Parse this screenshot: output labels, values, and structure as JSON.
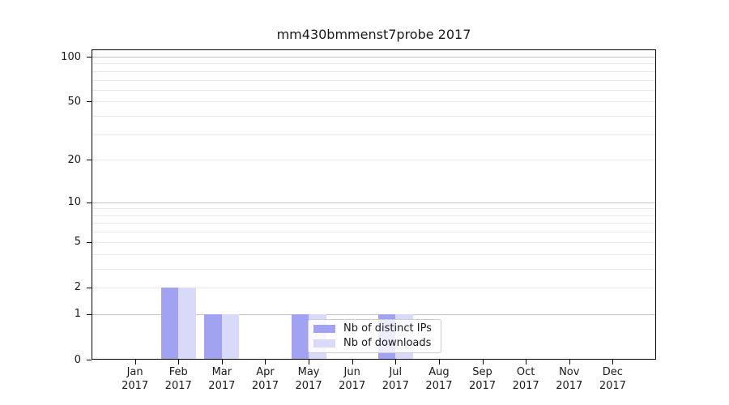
{
  "title": "mm430bmmenst7probe 2017",
  "chart_data": {
    "type": "bar",
    "title": "mm430bmmenst7probe 2017",
    "categories": [
      "Jan",
      "Feb",
      "Mar",
      "Apr",
      "May",
      "Jun",
      "Jul",
      "Aug",
      "Sep",
      "Oct",
      "Nov",
      "Dec"
    ],
    "year_label": "2017",
    "series": [
      {
        "name": "Nb of distinct IPs",
        "color": "#a2a2f2",
        "values": [
          0,
          2,
          1,
          0,
          1,
          0,
          1,
          0,
          0,
          0,
          0,
          0
        ]
      },
      {
        "name": "Nb of downloads",
        "color": "#d9d9fa",
        "values": [
          0,
          2,
          1,
          0,
          1,
          0,
          1,
          0,
          0,
          0,
          0,
          0
        ]
      }
    ],
    "y_axis": {
      "scale": "log1p",
      "major_ticks": [
        0,
        1,
        2,
        5,
        10,
        20,
        50,
        100
      ],
      "decade_ticks": [
        1,
        10,
        100
      ],
      "minor_ticks": [
        3,
        4,
        6,
        7,
        8,
        9,
        30,
        40,
        60,
        70,
        80,
        90
      ],
      "ylim": [
        0,
        113
      ]
    },
    "xlabel": "",
    "ylabel": "",
    "grid": true,
    "legend_position": "lower center-right inside plot"
  },
  "colors": {
    "bar_distinct_ips": "#a2a2f2",
    "bar_downloads": "#d9d9fa",
    "grid_decade": "#c3c3c3",
    "grid_minor": "#e8e8e8",
    "spine": "#000000",
    "text": "#1a1a1a",
    "legend_border": "#cccccc"
  }
}
